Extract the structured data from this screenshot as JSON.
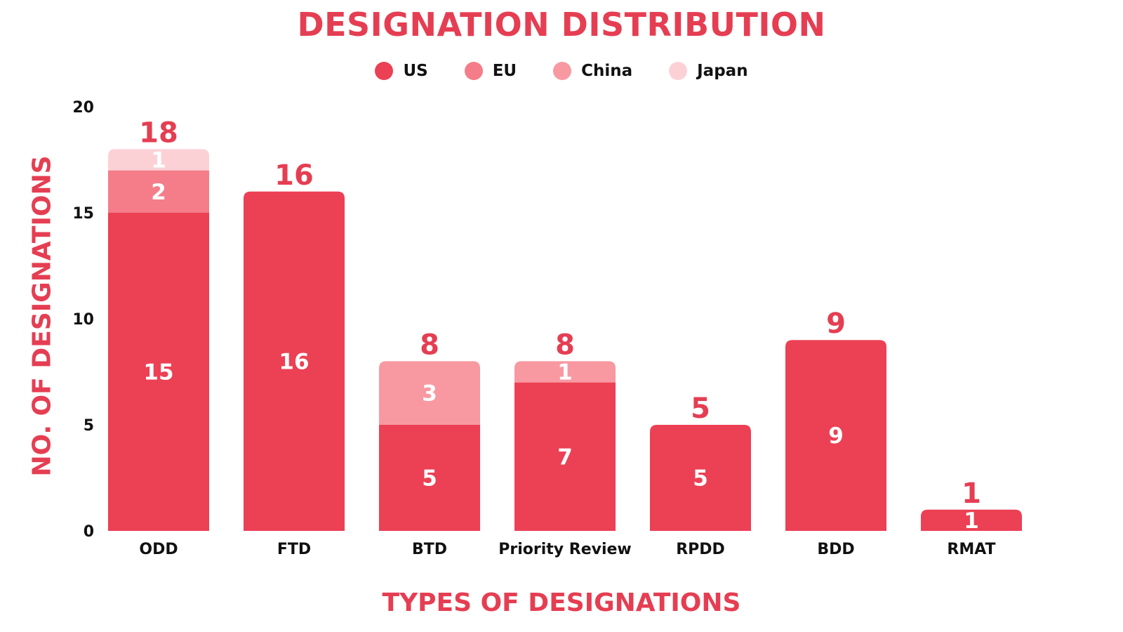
{
  "chart_data": {
    "type": "bar",
    "stacked": true,
    "title": "DESIGNATION DISTRIBUTION",
    "xlabel": "TYPES OF DESIGNATIONS",
    "ylabel": "NO. OF DESIGNATIONS",
    "ylim": [
      0,
      20
    ],
    "yticks": [
      0,
      5,
      10,
      15,
      20
    ],
    "categories": [
      "ODD",
      "FTD",
      "BTD",
      "Priority Review",
      "RPDD",
      "BDD",
      "RMAT"
    ],
    "series": [
      {
        "name": "US",
        "color": "#ec4054",
        "values": [
          15,
          16,
          5,
          7,
          5,
          9,
          1
        ]
      },
      {
        "name": "EU",
        "color": "#f47d89",
        "values": [
          2,
          0,
          0,
          0,
          0,
          0,
          0
        ]
      },
      {
        "name": "China",
        "color": "#f899a2",
        "values": [
          0,
          0,
          3,
          1,
          0,
          0,
          0
        ]
      },
      {
        "name": "Japan",
        "color": "#fcd1d6",
        "values": [
          1,
          0,
          0,
          0,
          0,
          0,
          0
        ]
      }
    ],
    "totals": [
      18,
      16,
      8,
      8,
      5,
      9,
      1
    ],
    "legend": "top-center",
    "grid": false
  }
}
